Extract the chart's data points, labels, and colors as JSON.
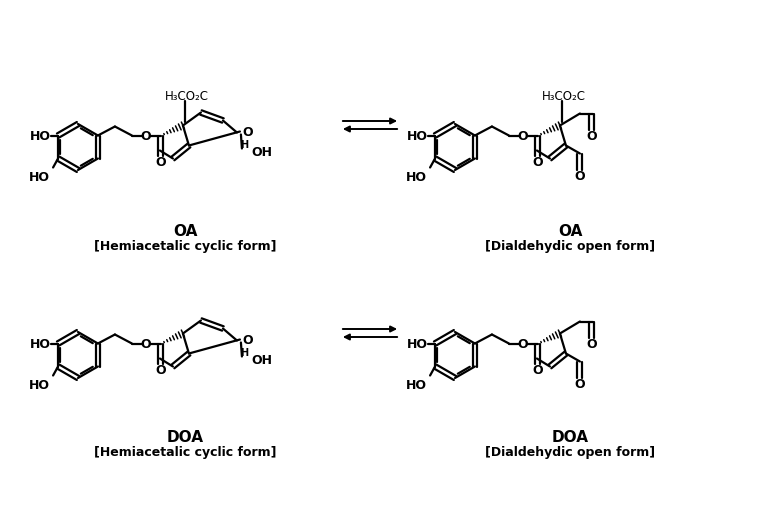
{
  "bg": "#ffffff",
  "lc": "#1a1a1a",
  "labels": {
    "OA_cyclic": [
      "OA",
      "[Hemiacetalic cyclic form]"
    ],
    "OA_open": [
      "OA",
      "[Dialdehydic open form]"
    ],
    "DOA_cyclic": [
      "DOA",
      "[Hemiacetalic cyclic form]"
    ],
    "DOA_open": [
      "DOA",
      "[Dialdehydic open form]"
    ]
  },
  "figsize": [
    7.71,
    5.06
  ],
  "dpi": 100
}
